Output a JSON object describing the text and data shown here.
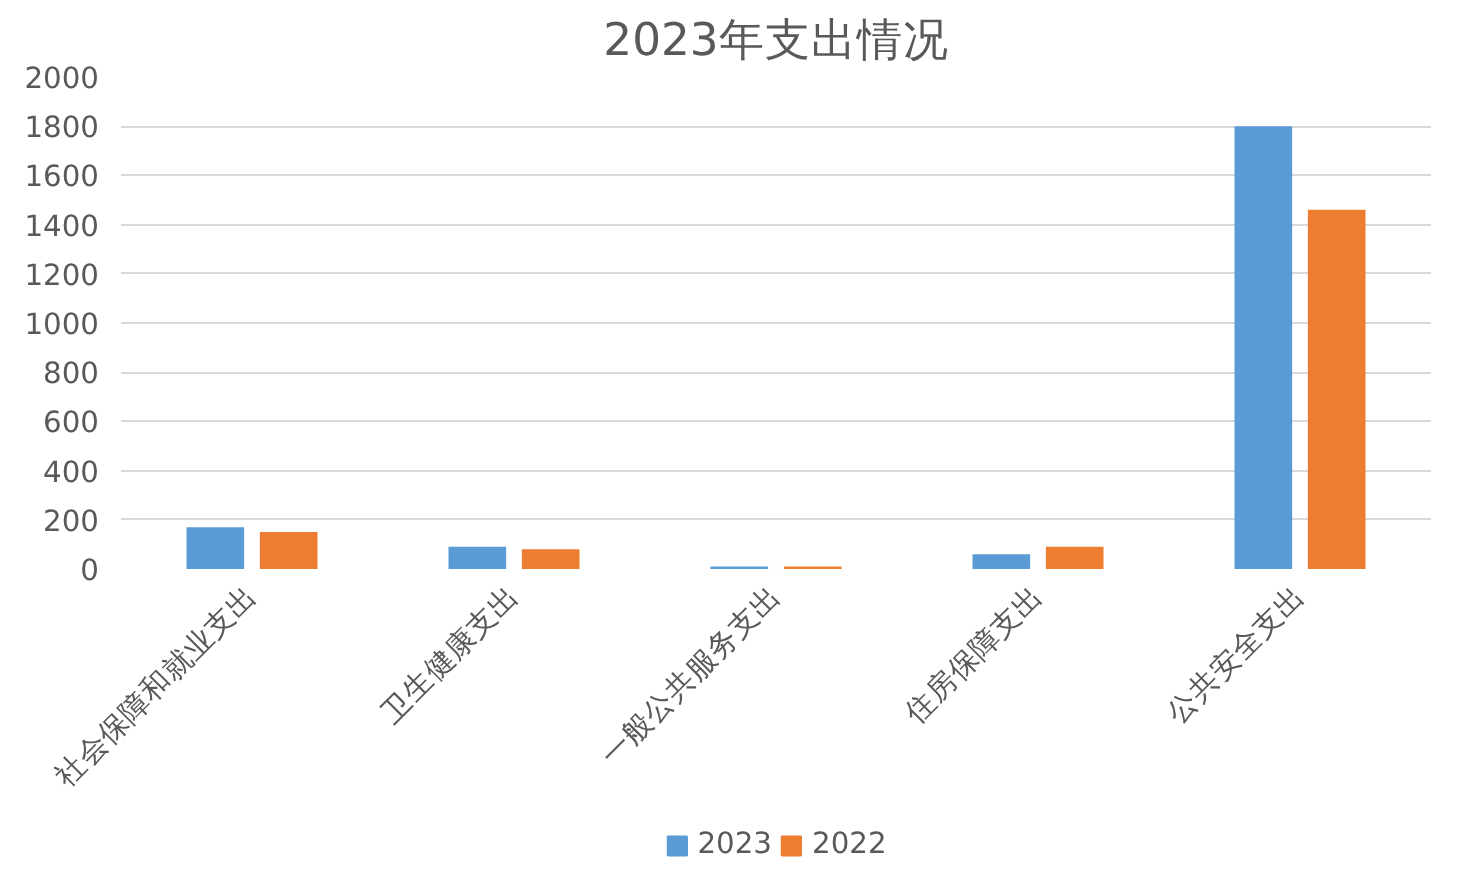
{
  "chart_data": {
    "type": "bar",
    "title": "2023年支出情况",
    "categories": [
      "社会保障和就业支出",
      "卫生健康支出",
      "一般公共服务支出",
      "住房保障支出",
      "公共安全支出"
    ],
    "series": [
      {
        "name": "2023",
        "color": "#5b9bd5",
        "values": [
          170,
          90,
          10,
          60,
          1800
        ]
      },
      {
        "name": "2022",
        "color": "#ed7d31",
        "values": [
          150,
          80,
          10,
          90,
          1460
        ]
      }
    ],
    "ylim": [
      0,
      2000
    ],
    "yticks": [
      0,
      200,
      400,
      600,
      800,
      1000,
      1200,
      1400,
      1600,
      1800,
      2000
    ],
    "grid": "y",
    "legend": "bottom"
  }
}
